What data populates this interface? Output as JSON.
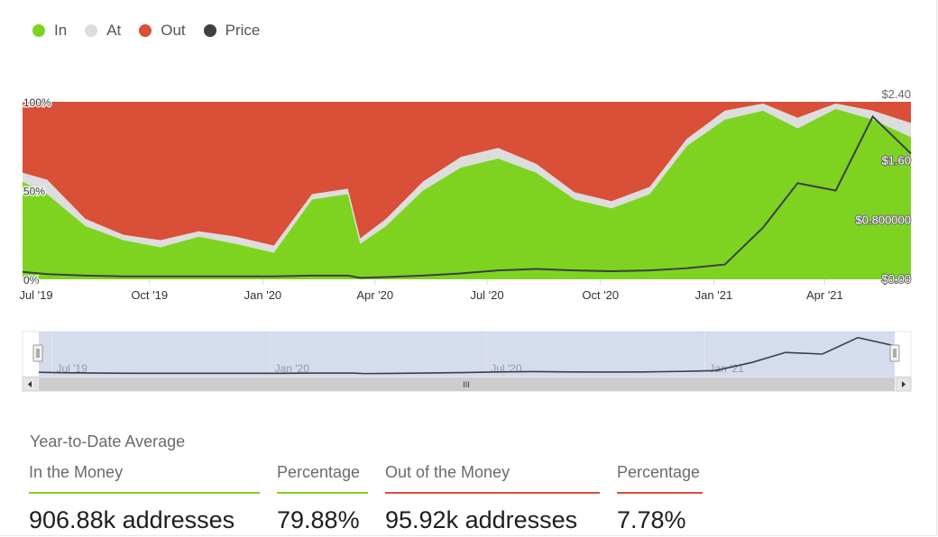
{
  "colors": {
    "in": "#7ed321",
    "at": "#dddddd",
    "out": "#d94f38",
    "price": "#3b3f46"
  },
  "legend": [
    {
      "name": "In",
      "color": "#7ed321"
    },
    {
      "name": "At",
      "color": "#dddddd"
    },
    {
      "name": "Out",
      "color": "#d94f38"
    },
    {
      "name": "Price",
      "color": "#3b3f46"
    }
  ],
  "chart_data": {
    "type": "area",
    "stacked": true,
    "percent": true,
    "x_ticks": [
      "Jul '19",
      "Oct '19",
      "Jan '20",
      "Apr '20",
      "Jul '20",
      "Oct '20",
      "Jan '21",
      "Apr '21"
    ],
    "y_left_ticks": [
      "0%",
      "50%",
      "100%"
    ],
    "y_right_ticks": [
      "$0.00",
      "$0.800000",
      "$1.60",
      "$2.40"
    ],
    "y_right_range": [
      0,
      2.4
    ],
    "x": [
      "2019-06-20",
      "2019-07-10",
      "2019-08-10",
      "2019-09-10",
      "2019-10-10",
      "2019-11-10",
      "2019-12-10",
      "2020-01-10",
      "2020-02-10",
      "2020-03-10",
      "2020-03-20",
      "2020-04-10",
      "2020-05-10",
      "2020-06-10",
      "2020-07-10",
      "2020-08-10",
      "2020-09-10",
      "2020-10-10",
      "2020-11-10",
      "2020-12-10",
      "2021-01-10",
      "2021-02-10",
      "2021-03-10",
      "2021-04-10",
      "2021-05-10",
      "2021-06-10"
    ],
    "series": [
      {
        "name": "In",
        "values": [
          55,
          48,
          30,
          22,
          18,
          24,
          20,
          15,
          45,
          48,
          20,
          30,
          50,
          63,
          68,
          60,
          45,
          40,
          48,
          75,
          90,
          95,
          85,
          96,
          90,
          80
        ]
      },
      {
        "name": "At",
        "values": [
          5,
          8,
          4,
          3,
          4,
          3,
          4,
          4,
          3,
          3,
          3,
          4,
          5,
          6,
          6,
          5,
          4,
          4,
          4,
          4,
          5,
          4,
          6,
          3,
          5,
          8
        ]
      },
      {
        "name": "Out",
        "values": [
          40,
          44,
          66,
          75,
          78,
          73,
          76,
          81,
          52,
          49,
          77,
          66,
          45,
          31,
          26,
          35,
          51,
          56,
          48,
          21,
          5,
          1,
          9,
          1,
          5,
          12
        ]
      },
      {
        "name": "Price",
        "axis": "right",
        "values": [
          0.1,
          0.07,
          0.05,
          0.04,
          0.04,
          0.04,
          0.04,
          0.04,
          0.05,
          0.05,
          0.02,
          0.03,
          0.05,
          0.08,
          0.12,
          0.14,
          0.12,
          0.11,
          0.12,
          0.15,
          0.2,
          0.7,
          1.3,
          1.2,
          2.2,
          1.7
        ]
      }
    ]
  },
  "navigator": {
    "ticks": [
      "Jul '19",
      "Jan '20",
      "Jul '20",
      "Jan '21"
    ],
    "scroll_grip": "III"
  },
  "stats": {
    "title": "Year-to-Date Average",
    "in_money": {
      "label": "In the Money",
      "value": "906.88k addresses"
    },
    "in_pct": {
      "label": "Percentage",
      "value": "79.88%"
    },
    "out_money": {
      "label": "Out of the Money",
      "value": "95.92k addresses"
    },
    "out_pct": {
      "label": "Percentage",
      "value": "7.78%"
    }
  }
}
